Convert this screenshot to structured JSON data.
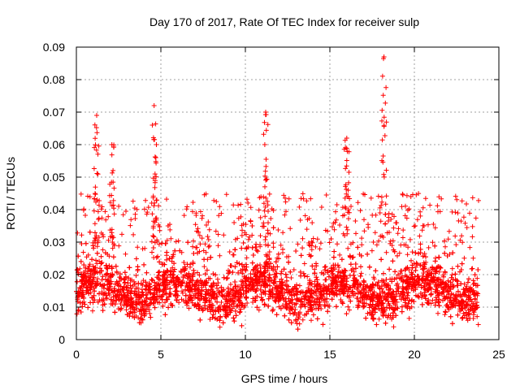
{
  "chart_data": {
    "type": "scatter",
    "title": "Day 170 of 2017, Rate Of TEC Index for receiver sulp",
    "xlabel": "GPS time / hours",
    "ylabel": "ROTI / TECUs",
    "xlim": [
      0,
      25
    ],
    "ylim": [
      0,
      0.09
    ],
    "xticks": [
      "0",
      "5",
      "10",
      "15",
      "20",
      "25"
    ],
    "yticks": [
      "0",
      "0.01",
      "0.02",
      "0.03",
      "0.04",
      "0.05",
      "0.06",
      "0.07",
      "0.08",
      "0.09"
    ],
    "grid": true,
    "marker": "+",
    "color": "#ff0000",
    "x_range_of_data": [
      0,
      23.8
    ],
    "typical_band": [
      0.005,
      0.025
    ],
    "peaks": [
      {
        "x": 1.2,
        "y": 0.069
      },
      {
        "x": 2.1,
        "y": 0.06
      },
      {
        "x": 4.6,
        "y": 0.072
      },
      {
        "x": 11.2,
        "y": 0.07
      },
      {
        "x": 16.0,
        "y": 0.062
      },
      {
        "x": 18.2,
        "y": 0.087
      }
    ]
  }
}
